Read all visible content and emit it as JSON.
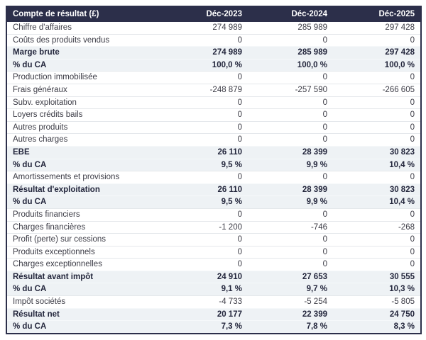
{
  "table": {
    "header": {
      "label": "Compte de résultat (£)",
      "columns": [
        "Déc-2023",
        "Déc-2024",
        "Déc-2025"
      ]
    },
    "rows": [
      {
        "label": "Chiffre d'affaires",
        "values": [
          "274 989",
          "285 989",
          "297 428"
        ],
        "emphasis": false
      },
      {
        "label": "Coûts des produits vendus",
        "values": [
          "0",
          "0",
          "0"
        ],
        "emphasis": false
      },
      {
        "label": "Marge brute",
        "values": [
          "274 989",
          "285 989",
          "297 428"
        ],
        "emphasis": true
      },
      {
        "label": "% du CA",
        "values": [
          "100,0 %",
          "100,0 %",
          "100,0 %"
        ],
        "emphasis": true
      },
      {
        "label": "Production immobilisée",
        "values": [
          "0",
          "0",
          "0"
        ],
        "emphasis": false
      },
      {
        "label": "Frais généraux",
        "values": [
          "-248 879",
          "-257 590",
          "-266 605"
        ],
        "emphasis": false
      },
      {
        "label": "Subv. exploitation",
        "values": [
          "0",
          "0",
          "0"
        ],
        "emphasis": false
      },
      {
        "label": "Loyers crédits bails",
        "values": [
          "0",
          "0",
          "0"
        ],
        "emphasis": false
      },
      {
        "label": "Autres produits",
        "values": [
          "0",
          "0",
          "0"
        ],
        "emphasis": false
      },
      {
        "label": "Autres charges",
        "values": [
          "0",
          "0",
          "0"
        ],
        "emphasis": false
      },
      {
        "label": "EBE",
        "values": [
          "26 110",
          "28 399",
          "30 823"
        ],
        "emphasis": true
      },
      {
        "label": "% du CA",
        "values": [
          "9,5 %",
          "9,9 %",
          "10,4 %"
        ],
        "emphasis": true
      },
      {
        "label": "Amortissements et provisions",
        "values": [
          "0",
          "0",
          "0"
        ],
        "emphasis": false
      },
      {
        "label": "Résultat d'exploitation",
        "values": [
          "26 110",
          "28 399",
          "30 823"
        ],
        "emphasis": true
      },
      {
        "label": "% du CA",
        "values": [
          "9,5 %",
          "9,9 %",
          "10,4 %"
        ],
        "emphasis": true
      },
      {
        "label": "Produits financiers",
        "values": [
          "0",
          "0",
          "0"
        ],
        "emphasis": false
      },
      {
        "label": "Charges financières",
        "values": [
          "-1 200",
          "-746",
          "-268"
        ],
        "emphasis": false
      },
      {
        "label": "Profit (perte) sur cessions",
        "values": [
          "0",
          "0",
          "0"
        ],
        "emphasis": false
      },
      {
        "label": "Produits exceptionnels",
        "values": [
          "0",
          "0",
          "0"
        ],
        "emphasis": false
      },
      {
        "label": "Charges exceptionnelles",
        "values": [
          "0",
          "0",
          "0"
        ],
        "emphasis": false
      },
      {
        "label": "Résultat avant impôt",
        "values": [
          "24 910",
          "27 653",
          "30 555"
        ],
        "emphasis": true
      },
      {
        "label": "% du CA",
        "values": [
          "9,1 %",
          "9,7 %",
          "10,3 %"
        ],
        "emphasis": true
      },
      {
        "label": "Impôt sociétés",
        "values": [
          "-4 733",
          "-5 254",
          "-5 805"
        ],
        "emphasis": false
      },
      {
        "label": "Résultat net",
        "values": [
          "20 177",
          "22 399",
          "24 750"
        ],
        "emphasis": true
      },
      {
        "label": "% du CA",
        "values": [
          "7,3 %",
          "7,8 %",
          "8,3 %"
        ],
        "emphasis": true
      }
    ]
  },
  "colors": {
    "header_bg": "#2c2f4a",
    "header_text": "#ffffff",
    "emphasis_row_bg": "#eef2f5",
    "emphasis_text": "#23263c",
    "body_text": "#3c3c46",
    "table_border": "#2c2f4a",
    "row_separator": "#e4e7eb",
    "page_bg": "#ffffff"
  }
}
